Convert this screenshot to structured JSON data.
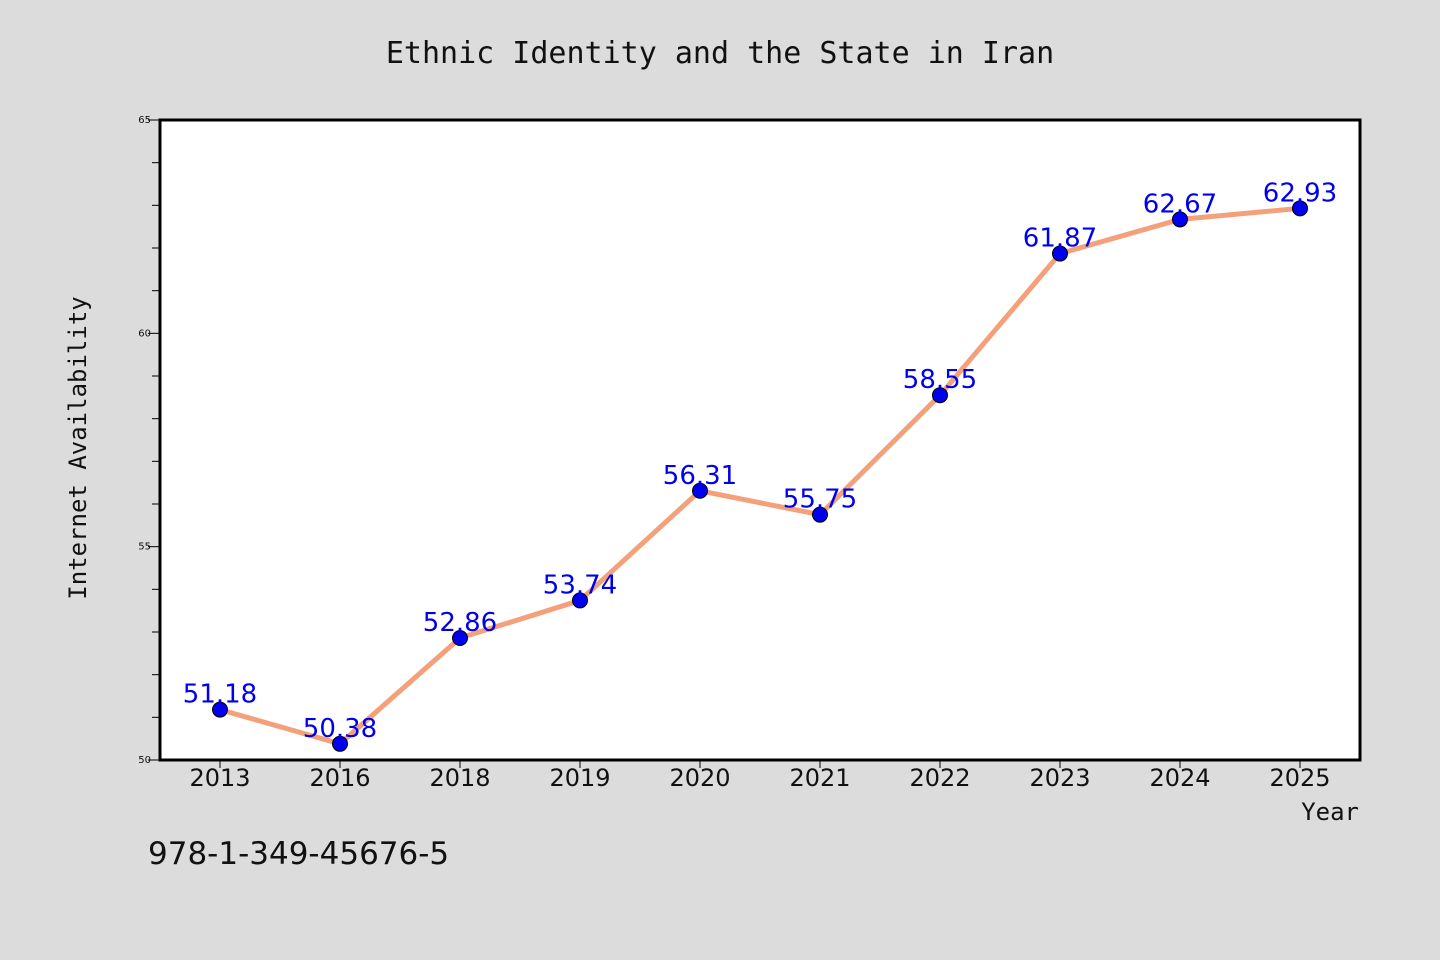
{
  "chart_data": {
    "type": "line",
    "title": "Ethnic Identity and the State in Iran",
    "xlabel": "Year",
    "ylabel": "Internet Availability",
    "categories": [
      "2013",
      "2016",
      "2018",
      "2019",
      "2020",
      "2021",
      "2022",
      "2023",
      "2024",
      "2025"
    ],
    "series": [
      {
        "values": [
          51.18,
          50.38,
          52.86,
          53.74,
          56.31,
          55.75,
          58.55,
          61.87,
          62.67,
          62.93
        ]
      }
    ],
    "data_labels": [
      "51.18",
      "50.38",
      "52.86",
      "53.74",
      "56.31",
      "55.75",
      "58.55",
      "61.87",
      "62.67",
      "62.93"
    ],
    "ylim": [
      50,
      65
    ],
    "yticks": [
      50,
      55,
      60,
      65
    ],
    "grid": false,
    "colors": {
      "line": "#f4a07a",
      "marker": "#0000ee",
      "label": "#0000ee",
      "background": "#dcdcdc",
      "plot": "#ffffff"
    }
  },
  "footer": {
    "isbn": "978-1-349-45676-5"
  }
}
